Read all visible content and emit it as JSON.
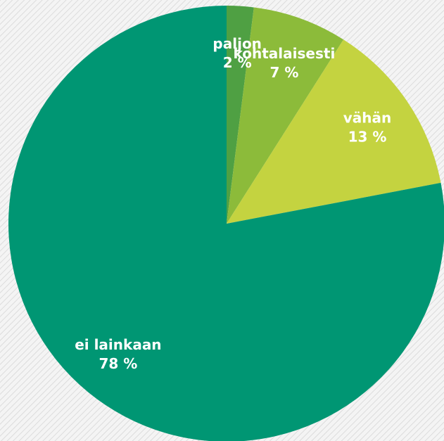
{
  "chart_data": {
    "type": "pie",
    "categories": [
      "paljon",
      "kohtalaisesti",
      "vähän",
      "ei lainkaan"
    ],
    "values": [
      2,
      7,
      13,
      78
    ],
    "value_labels": [
      "2 %",
      "7 %",
      "13 %",
      "78 %"
    ],
    "colors": [
      "#4fa043",
      "#8cbb3a",
      "#c4d340",
      "#009673"
    ]
  }
}
